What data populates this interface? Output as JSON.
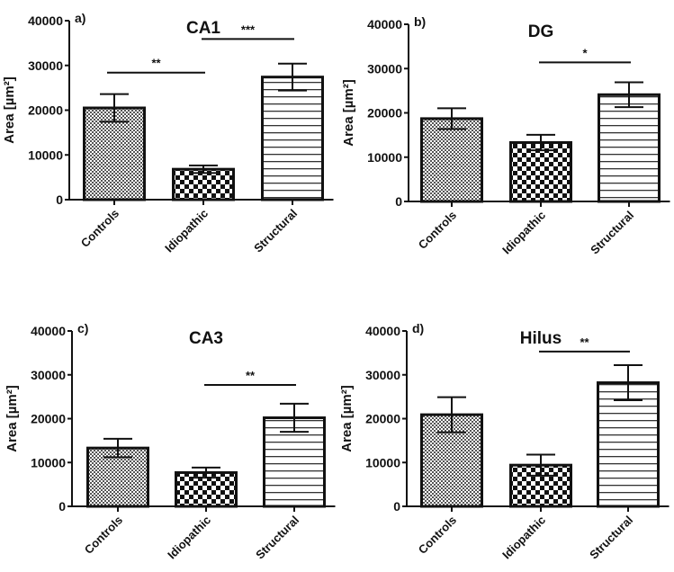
{
  "chart_data": [
    {
      "type": "bar",
      "panel_label": "a)",
      "title": "CA1",
      "ylabel": "Area [µm²]",
      "ylim": [
        0,
        40000
      ],
      "yticks": [
        0,
        10000,
        20000,
        30000,
        40000
      ],
      "categories": [
        "Controls",
        "Idiopathic",
        "Structural"
      ],
      "values": [
        20500,
        6800,
        27400
      ],
      "errors": [
        3100,
        850,
        3000
      ],
      "significance": [
        {
          "from": 0,
          "to": 1,
          "label": "**",
          "y": 28400
        },
        {
          "from": 1,
          "to": 2,
          "label": "***",
          "y": 35900
        }
      ]
    },
    {
      "type": "bar",
      "panel_label": "b)",
      "title": "DG",
      "ylabel": "Area [µm²]",
      "ylim": [
        0,
        40000
      ],
      "yticks": [
        0,
        10000,
        20000,
        30000,
        40000
      ],
      "categories": [
        "Controls",
        "Idiopathic",
        "Structural"
      ],
      "values": [
        18700,
        13300,
        24100
      ],
      "errors": [
        2350,
        1750,
        2800
      ],
      "significance": [
        {
          "from": 1,
          "to": 2,
          "label": "*",
          "y": 31400
        }
      ]
    },
    {
      "type": "bar",
      "panel_label": "c)",
      "title": "CA3",
      "ylabel": "Area [µm²]",
      "ylim": [
        0,
        40000
      ],
      "yticks": [
        0,
        10000,
        20000,
        30000,
        40000
      ],
      "categories": [
        "Controls",
        "Idiopathic",
        "Structural"
      ],
      "values": [
        13300,
        7700,
        20200
      ],
      "errors": [
        2100,
        1150,
        3200
      ],
      "significance": [
        {
          "from": 1,
          "to": 2,
          "label": "**",
          "y": 27700
        }
      ]
    },
    {
      "type": "bar",
      "panel_label": "d)",
      "title": "Hilus",
      "ylabel": "Area [µm²]",
      "ylim": [
        0,
        40000
      ],
      "yticks": [
        0,
        10000,
        20000,
        30000,
        40000
      ],
      "categories": [
        "Controls",
        "Idiopathic",
        "Structural"
      ],
      "values": [
        20900,
        9400,
        28200
      ],
      "errors": [
        4000,
        2400,
        4000
      ],
      "significance": [
        {
          "from": 1,
          "to": 2,
          "label": "**",
          "y": 35300
        }
      ]
    }
  ],
  "fill_patterns": [
    "fine-checker",
    "coarse-checker",
    "horizontal-lines"
  ],
  "colors": {
    "ink": "#111111",
    "fine_checker": "#666666",
    "background": "#ffffff"
  }
}
